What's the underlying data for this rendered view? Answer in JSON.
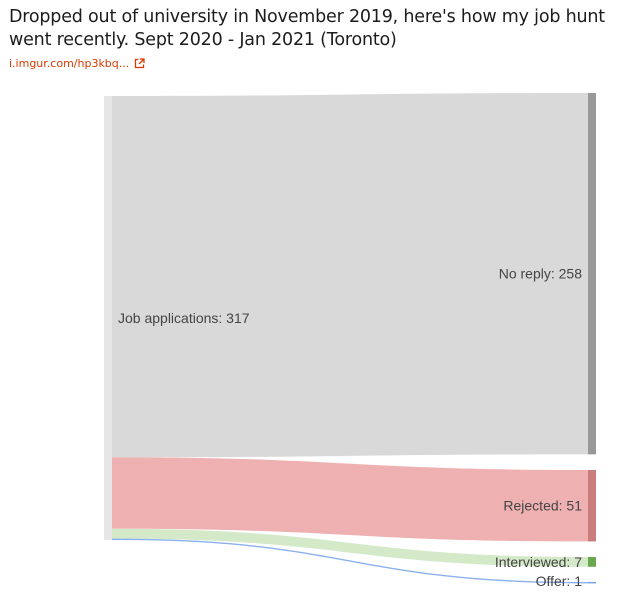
{
  "post": {
    "title": "Dropped out of university in November 2019, here's how my job hunt went recently. Sept 2020 - Jan 2021 (Toronto)",
    "link_text": "i.imgur.com/hp3kbq...",
    "link_icon": "external-link-icon",
    "accent_color": "#d93a00"
  },
  "chart_data": {
    "type": "sankey",
    "source": {
      "name": "Job applications",
      "value": 317,
      "label": "Job applications: 317"
    },
    "targets": [
      {
        "name": "No reply",
        "value": 258,
        "label": "No reply: 258",
        "node_color": "#999999",
        "flow_color": "#d9d9d9"
      },
      {
        "name": "Rejected",
        "value": 51,
        "label": "Rejected: 51",
        "node_color": "#c97d7d",
        "flow_color": "#eeb0b0"
      },
      {
        "name": "Interviewed",
        "value": 7,
        "label": "Interviewed: 7",
        "node_color": "#6aa84f",
        "flow_color": "#d3e9c8"
      },
      {
        "name": "Offer",
        "value": 1,
        "label": "Offer: 1",
        "node_color": "#6d9eeb",
        "flow_color": "#8ab0ee"
      }
    ],
    "source_node_color": "#e6e6e6"
  }
}
